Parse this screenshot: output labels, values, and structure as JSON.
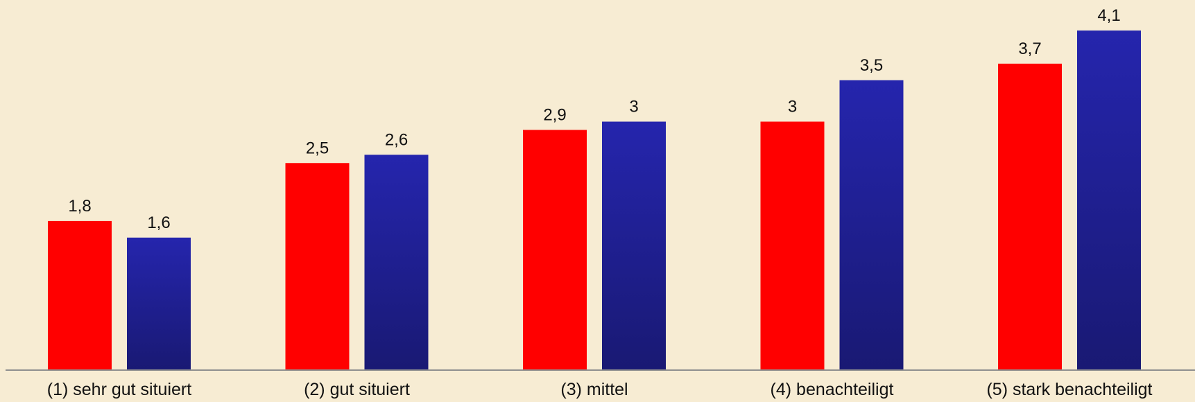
{
  "chart_data": {
    "type": "bar",
    "categories": [
      "(1) sehr gut situiert",
      "(2) gut situiert",
      "(3) mittel",
      "(4) benachteiligt",
      "(5) stark benachteiligt"
    ],
    "series": [
      {
        "values": [
          1.8,
          2.5,
          2.9,
          3.0,
          3.7
        ],
        "labels": [
          "1,8",
          "2,5",
          "2,9",
          "3",
          "3,7"
        ],
        "color": "#ff0000"
      },
      {
        "values": [
          1.6,
          2.6,
          3.0,
          3.5,
          4.1
        ],
        "labels": [
          "1,6",
          "2,6",
          "3",
          "3,5",
          "4,1"
        ],
        "color": "#1e1e9e"
      }
    ],
    "title": "",
    "xlabel": "",
    "ylabel": "",
    "ylim": [
      0,
      4.1
    ],
    "grid": false,
    "legend": "none"
  }
}
